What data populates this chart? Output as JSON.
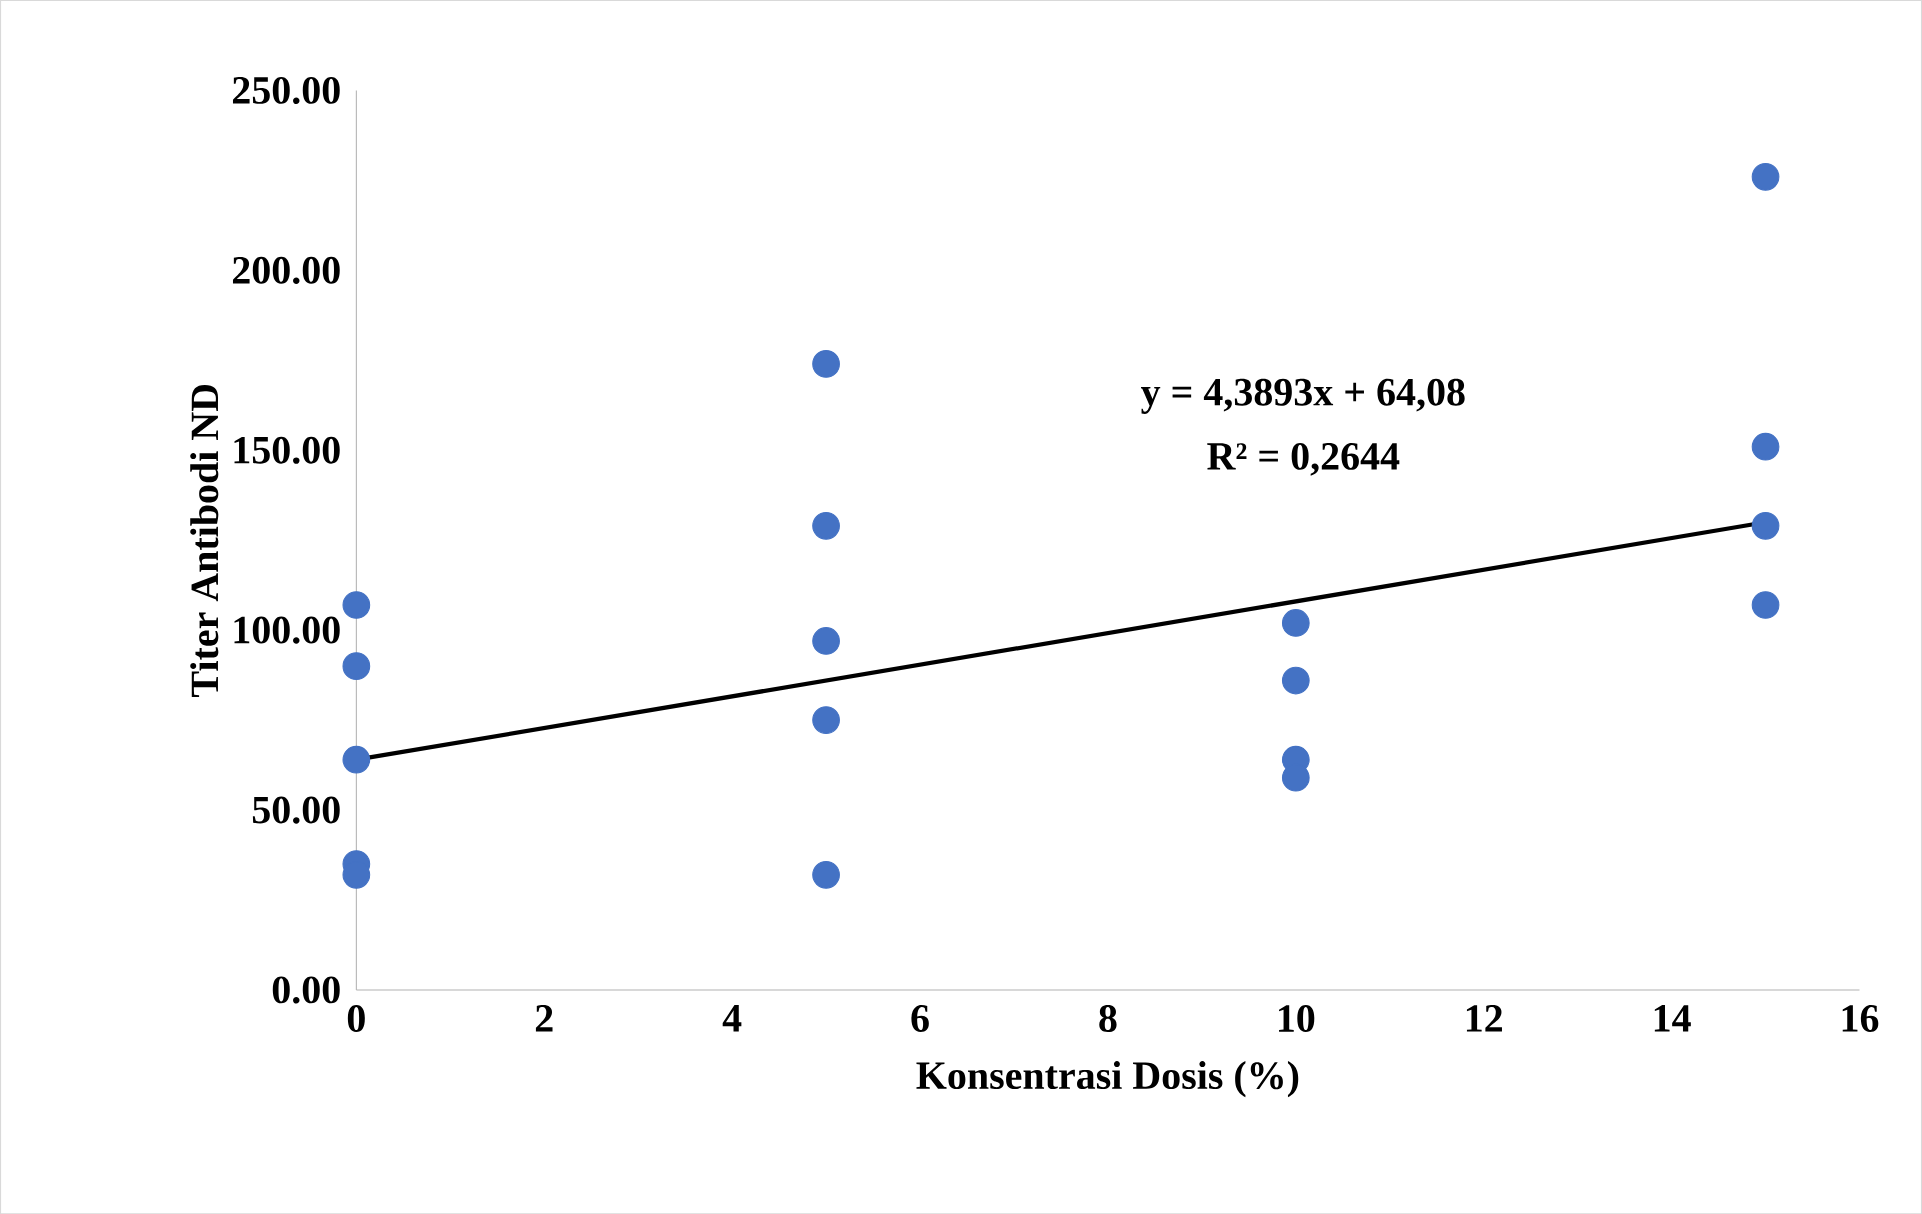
{
  "chart_data": {
    "type": "scatter",
    "xlabel": "Konsentrasi Dosis (%)",
    "ylabel": "Titer Antibodi ND",
    "xlim": [
      0,
      16
    ],
    "xticks": [
      0,
      2,
      4,
      6,
      8,
      10,
      12,
      14,
      16
    ],
    "ylim": [
      0,
      250
    ],
    "yticks": [
      {
        "value": 0,
        "label": "0.00"
      },
      {
        "value": 50,
        "label": "50.00"
      },
      {
        "value": 100,
        "label": "100.00"
      },
      {
        "value": 150,
        "label": "150.00"
      },
      {
        "value": 200,
        "label": "200.00"
      },
      {
        "value": 250,
        "label": "250.00"
      }
    ],
    "grid": false,
    "marker": "circle",
    "annotations": [
      "y = 4,3893x + 64,08",
      "R² = 0,2644"
    ],
    "series": [
      {
        "color": "#4472c4",
        "x": [
          0,
          0,
          0,
          0,
          0,
          5,
          5,
          5,
          5,
          5,
          10,
          10,
          10,
          10,
          15,
          15,
          15,
          15
        ],
        "values": [
          107,
          90,
          64,
          35,
          32,
          174,
          129,
          97,
          75,
          32,
          102,
          86,
          64,
          59,
          226,
          151,
          129,
          107
        ]
      },
      {
        "type": "line",
        "color": "#000000",
        "marker": "none",
        "x": [
          0,
          15
        ],
        "values": [
          64,
          130
        ]
      }
    ]
  }
}
